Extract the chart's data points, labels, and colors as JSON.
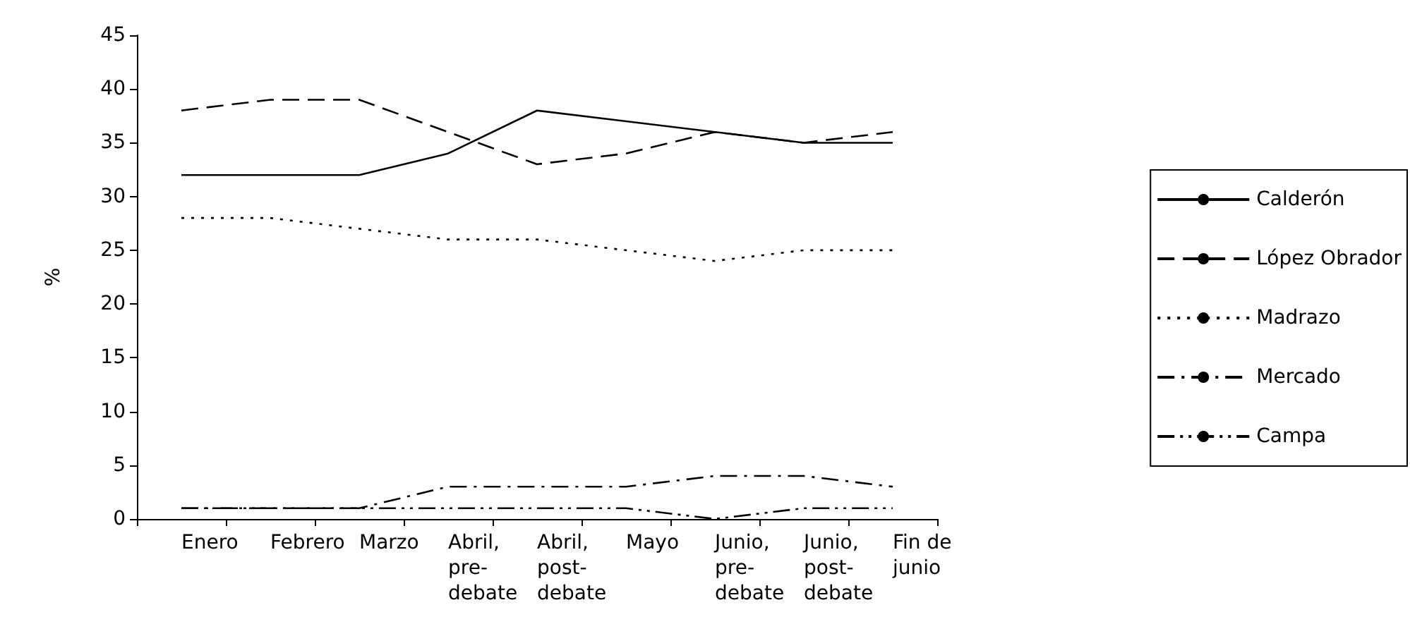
{
  "chart_data": {
    "type": "line",
    "ylabel": "%",
    "categories": [
      "Enero",
      "Febrero",
      "Marzo",
      "Abril, pre-debate",
      "Abril, post-debate",
      "Mayo",
      "Junio, pre-debate",
      "Junio, post-debate",
      "Fin de junio"
    ],
    "series": [
      {
        "name": "Calderón",
        "color": "#000000",
        "line_style": "solid",
        "values": [
          32,
          32,
          32,
          34,
          38,
          37,
          36,
          35,
          35
        ]
      },
      {
        "name": "López Obrador",
        "color": "#000000",
        "line_style": "dashed",
        "values": [
          38,
          39,
          39,
          36,
          33,
          34,
          36,
          35,
          36
        ]
      },
      {
        "name": "Madrazo",
        "color": "#000000",
        "line_style": "dotted",
        "values": [
          28,
          28,
          27,
          26,
          26,
          25,
          24,
          25,
          25
        ]
      },
      {
        "name": "Mercado",
        "color": "#000000",
        "line_style": "dashdot",
        "values": [
          1,
          1,
          1,
          3,
          3,
          3,
          4,
          4,
          3
        ]
      },
      {
        "name": "Campa",
        "color": "#000000",
        "line_style": "dashdotdot",
        "values": [
          1,
          1,
          1,
          1,
          1,
          1,
          0,
          1,
          1
        ]
      }
    ],
    "ylim": [
      0,
      45
    ],
    "yticks": [
      0,
      5,
      10,
      15,
      20,
      25,
      30,
      35,
      40,
      45
    ],
    "grid": false,
    "legend": "right",
    "marker": "none"
  }
}
